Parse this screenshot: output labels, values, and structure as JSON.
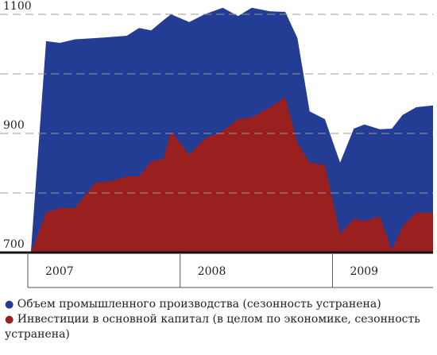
{
  "chart_data": {
    "type": "area",
    "x": [
      2007.02,
      2007.12,
      2007.21,
      2007.31,
      2007.44,
      2007.55,
      2007.65,
      2007.73,
      2007.81,
      2007.89,
      2007.94,
      2008.06,
      2008.16,
      2008.28,
      2008.38,
      2008.47,
      2008.59,
      2008.69,
      2008.77,
      2008.85,
      2008.95,
      2009.05,
      2009.14,
      2009.21,
      2009.31,
      2009.39,
      2009.46,
      2009.55,
      2009.66
    ],
    "xlim": [
      2007,
      2009.66
    ],
    "xticks": [
      2007,
      2008,
      2009
    ],
    "ylim": [
      700,
      1100
    ],
    "yticks": [
      700,
      900,
      1100
    ],
    "minor_yticks": [
      800,
      1000
    ],
    "grid": true,
    "series": [
      {
        "name": "Объем промышленного производства (сезонность устранена)",
        "color": "#233c94",
        "values": [
          700,
          1055,
          1052,
          1058,
          1060,
          1062,
          1064,
          1077,
          1073,
          1090,
          1100,
          1087,
          1100,
          1111,
          1097,
          1111,
          1105,
          1104,
          1060,
          937,
          924,
          851,
          908,
          915,
          907,
          908,
          931,
          944,
          947
        ]
      },
      {
        "name": "Инвестиции в основной капитал (в целом по экономике, сезонность устранена)",
        "color": "#9a1f1f",
        "values": [
          700,
          767,
          775,
          775,
          817,
          820,
          828,
          828,
          853,
          857,
          904,
          864,
          891,
          904,
          924,
          927,
          944,
          961,
          884,
          851,
          847,
          731,
          757,
          753,
          761,
          704,
          744,
          767,
          767
        ]
      }
    ]
  }
}
